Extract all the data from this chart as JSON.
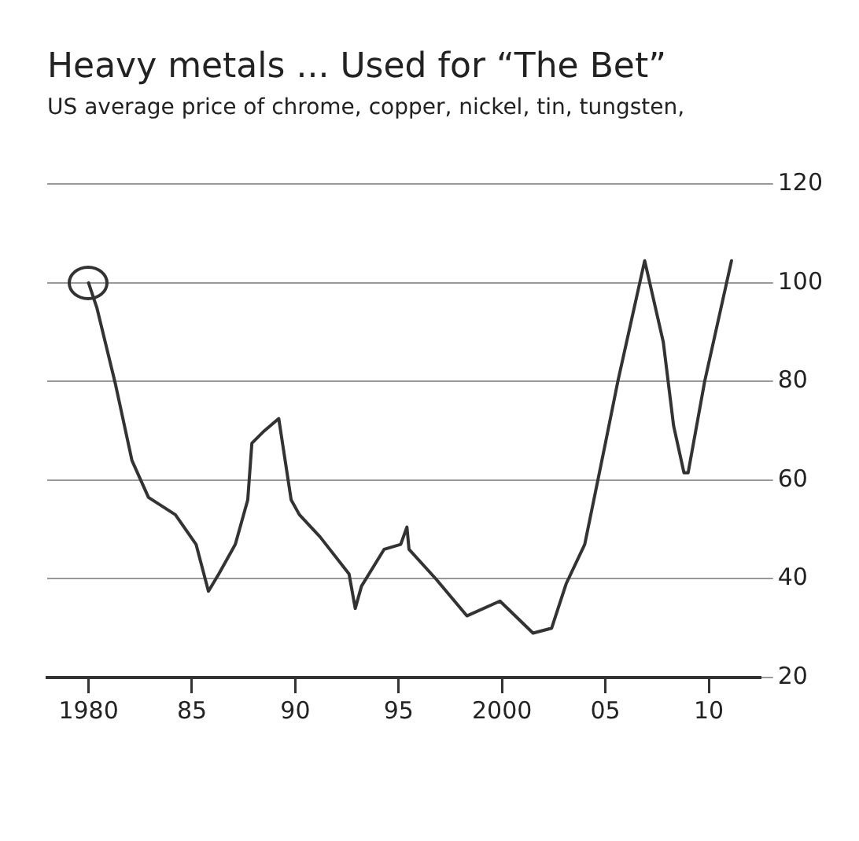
{
  "chart_data": {
    "type": "line",
    "title": "Heavy metals ... Used for “The Bet”",
    "subtitle": "US average price of chrome, copper, nickel, tin, tungsten,",
    "x": [
      1980,
      1980.4,
      1981.3,
      1982.1,
      1982.9,
      1984.2,
      1985.2,
      1985.8,
      1986.3,
      1987.1,
      1987.7,
      1987.9,
      1988.5,
      1989.2,
      1989.8,
      1990.2,
      1991.2,
      1992.6,
      1992.9,
      1993.2,
      1994.3,
      1995.1,
      1995.4,
      1995.5,
      1996.8,
      1998.3,
      1999.9,
      2001.5,
      2002.4,
      2003.1,
      2004,
      2005,
      2005.6,
      2006.9,
      2007.8,
      2008.3,
      2008.8,
      2009,
      2009.8,
      2011.1
    ],
    "series": [
      {
        "color": "#333333",
        "values": [
          100,
          95,
          79.5,
          64,
          56.5,
          53,
          47,
          37.5,
          41,
          47,
          56,
          67.5,
          70,
          72.5,
          56,
          53,
          48.5,
          41,
          34,
          38.5,
          46,
          47,
          50.5,
          46,
          40,
          32.5,
          35.5,
          29,
          30,
          39,
          47,
          67.5,
          80,
          104.5,
          88,
          71,
          61.5,
          61.5,
          80,
          104.5
        ]
      }
    ],
    "xlim": [
      1978,
      2012.5
    ],
    "xticks": [
      {
        "value": 1980,
        "label": "1980"
      },
      {
        "value": 1985,
        "label": "85"
      },
      {
        "value": 1990,
        "label": "90"
      },
      {
        "value": 1995,
        "label": "95"
      },
      {
        "value": 2000,
        "label": "2000"
      },
      {
        "value": 2005,
        "label": "05"
      },
      {
        "value": 2010,
        "label": "10"
      }
    ],
    "ylim": [
      20,
      120
    ],
    "yticks": [
      20,
      40,
      60,
      80,
      100,
      120
    ],
    "grid": "y"
  }
}
